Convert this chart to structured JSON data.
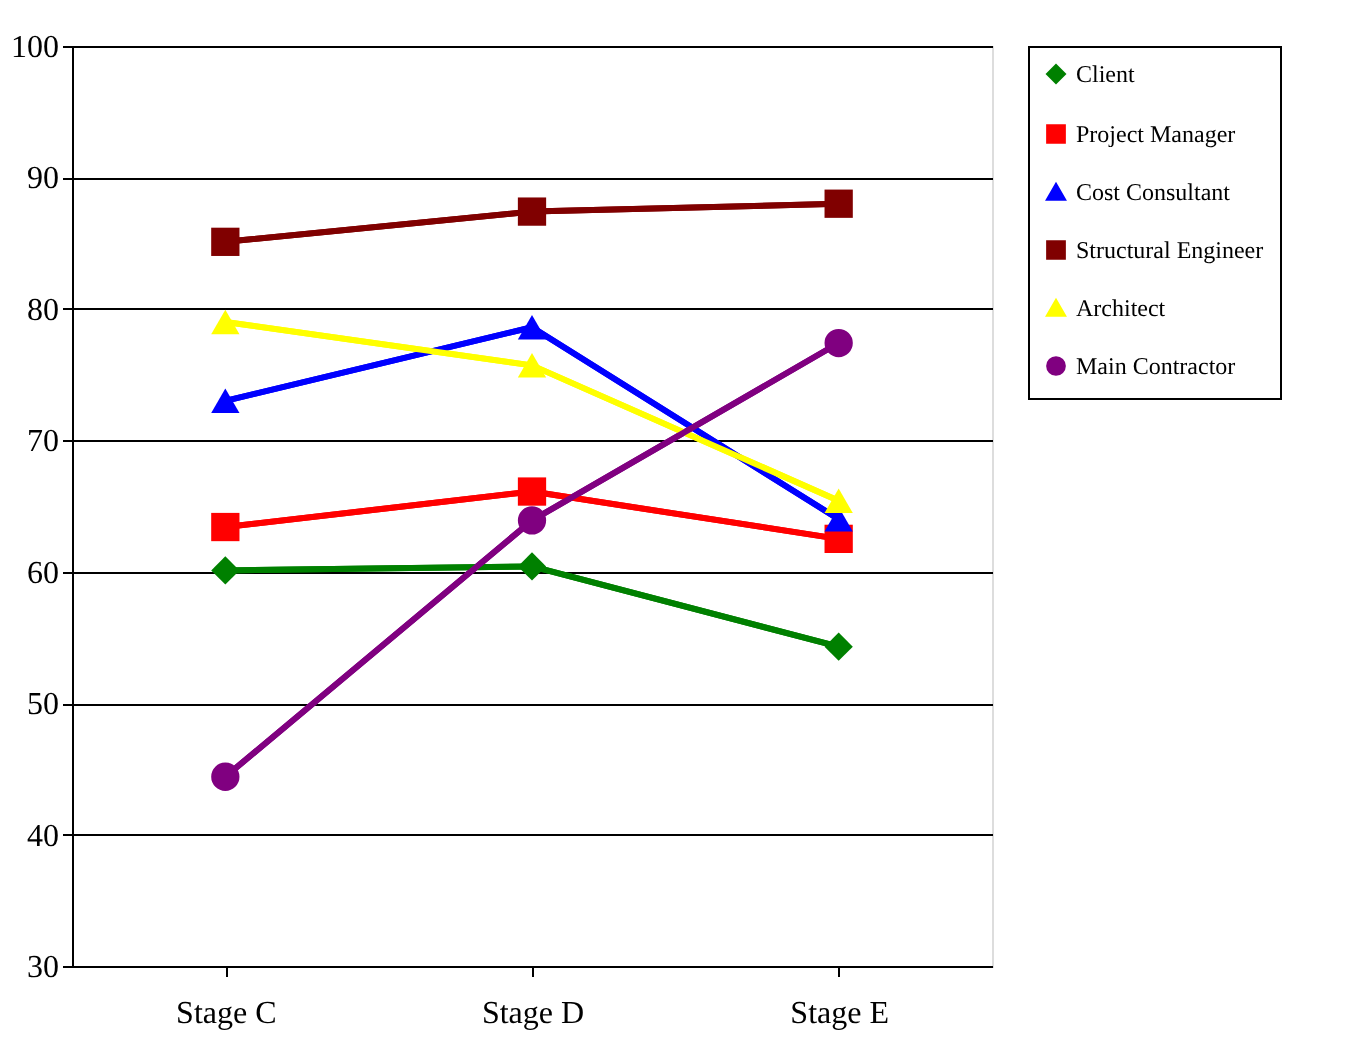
{
  "chart_data": {
    "type": "line",
    "categories": [
      "Stage C",
      "Stage D",
      "Stage E"
    ],
    "series": [
      {
        "name": "Client",
        "color": "#008000",
        "marker": "diamond",
        "values": [
          60.1,
          60.4,
          54.3
        ]
      },
      {
        "name": "Project Manager",
        "color": "#ff0000",
        "marker": "square",
        "values": [
          63.4,
          66.1,
          62.5
        ]
      },
      {
        "name": "Cost Consultant",
        "color": "#0000ff",
        "marker": "triangle",
        "values": [
          73.0,
          78.6,
          64.0
        ]
      },
      {
        "name": "Structural Engineer",
        "color": "#800000",
        "marker": "square",
        "values": [
          85.1,
          87.4,
          88.0
        ]
      },
      {
        "name": "Architect",
        "color": "#ffff00",
        "marker": "triangle",
        "values": [
          79.0,
          75.7,
          65.4
        ]
      },
      {
        "name": "Main Contractor",
        "color": "#800080",
        "marker": "circle",
        "values": [
          44.4,
          63.9,
          77.4
        ]
      }
    ],
    "ylim": [
      30,
      100
    ],
    "yticks": [
      30,
      40,
      50,
      60,
      70,
      80,
      90,
      100
    ],
    "grid": "y",
    "legend": "top right",
    "line_style": "solid"
  }
}
